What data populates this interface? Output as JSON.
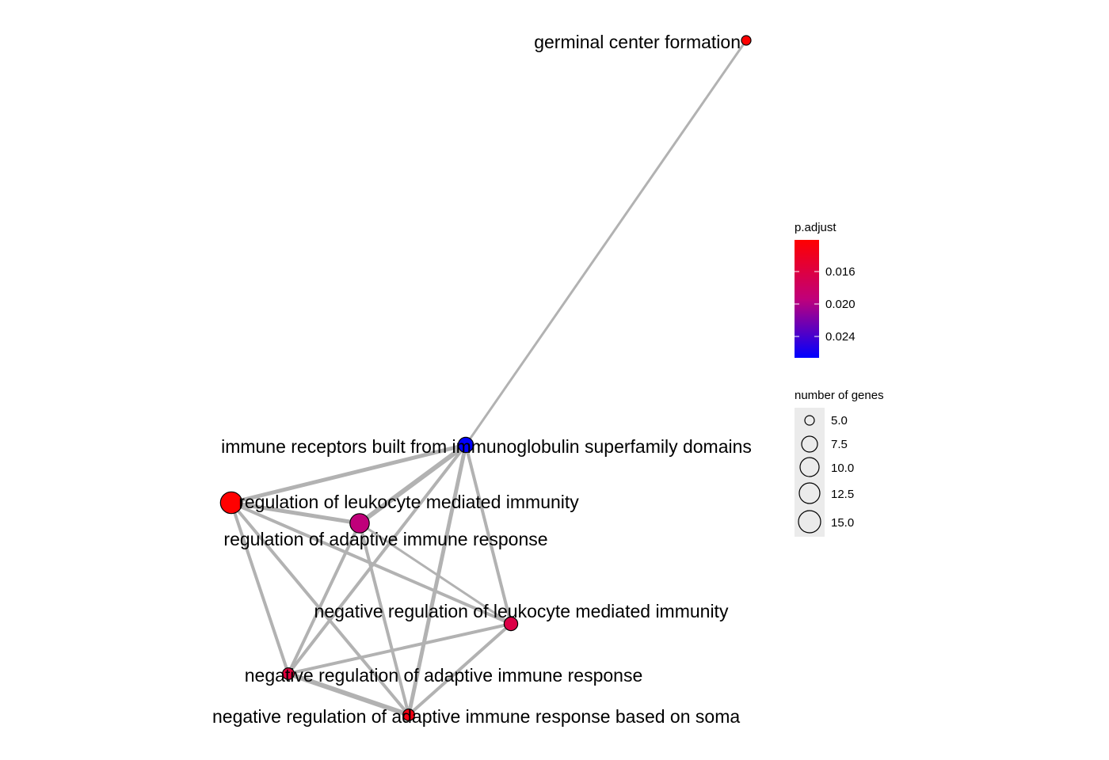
{
  "network": {
    "nodes": [
      {
        "id": "gcf",
        "label": "germinal center formation",
        "p_adjust": 0.0125,
        "genes": 5
      },
      {
        "id": "irib",
        "label": "immune receptors built from immunoglobulin superfamily domains",
        "p_adjust": 0.0265,
        "genes": 8
      },
      {
        "id": "rlmi",
        "label": "regulation of leukocyte mediated immunity",
        "p_adjust": 0.0125,
        "genes": 13
      },
      {
        "id": "rair",
        "label": "regulation of adaptive immune response",
        "p_adjust": 0.0195,
        "genes": 11
      },
      {
        "id": "nrlmi",
        "label": "negative regulation of leukocyte mediated immunity",
        "p_adjust": 0.0165,
        "genes": 7
      },
      {
        "id": "nrair",
        "label": "negative regulation of adaptive immune response",
        "p_adjust": 0.016,
        "genes": 6
      },
      {
        "id": "nrairs",
        "label": "negative regulation of adaptive immune response based on soma",
        "p_adjust": 0.0135,
        "genes": 6
      }
    ],
    "edges": [
      {
        "source": "gcf",
        "target": "irib"
      },
      {
        "source": "irib",
        "target": "rlmi"
      },
      {
        "source": "irib",
        "target": "rair"
      },
      {
        "source": "irib",
        "target": "nrlmi"
      },
      {
        "source": "irib",
        "target": "nrair"
      },
      {
        "source": "irib",
        "target": "nrairs"
      },
      {
        "source": "rlmi",
        "target": "rair"
      },
      {
        "source": "rlmi",
        "target": "nrlmi"
      },
      {
        "source": "rlmi",
        "target": "nrair"
      },
      {
        "source": "rlmi",
        "target": "nrairs"
      },
      {
        "source": "rair",
        "target": "nrlmi"
      },
      {
        "source": "rair",
        "target": "nrair"
      },
      {
        "source": "rair",
        "target": "nrairs"
      },
      {
        "source": "nrlmi",
        "target": "nrair"
      },
      {
        "source": "nrlmi",
        "target": "nrairs"
      },
      {
        "source": "nrair",
        "target": "nrairs"
      }
    ]
  },
  "legend": {
    "color": {
      "title": "p.adjust",
      "labels": [
        "0.016",
        "0.020",
        "0.024"
      ],
      "colors": {
        "high": "#ff0000",
        "low": "#0000ff"
      }
    },
    "size": {
      "title": "number of genes",
      "labels": [
        "5.0",
        "7.5",
        "10.0",
        "12.5",
        "15.0"
      ]
    }
  },
  "colors": {
    "edge": "#b2b2b2",
    "node_stroke": "#000000",
    "legend_key_bg": "#ebebeb"
  }
}
